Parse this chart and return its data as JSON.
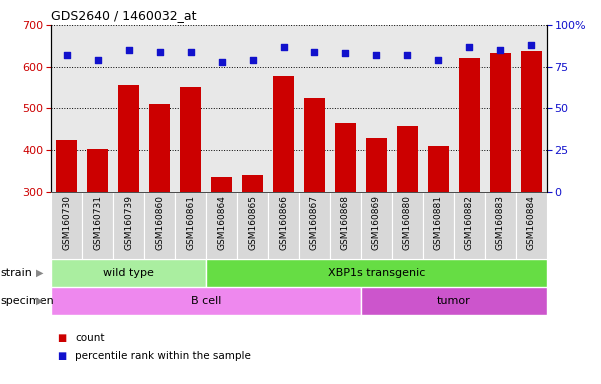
{
  "title": "GDS2640 / 1460032_at",
  "samples": [
    "GSM160730",
    "GSM160731",
    "GSM160739",
    "GSM160860",
    "GSM160861",
    "GSM160864",
    "GSM160865",
    "GSM160866",
    "GSM160867",
    "GSM160868",
    "GSM160869",
    "GSM160880",
    "GSM160881",
    "GSM160882",
    "GSM160883",
    "GSM160884"
  ],
  "counts": [
    425,
    403,
    557,
    510,
    552,
    335,
    340,
    578,
    525,
    466,
    430,
    457,
    410,
    622,
    632,
    638
  ],
  "percentiles": [
    82,
    79,
    85,
    84,
    84,
    78,
    79,
    87,
    84,
    83,
    82,
    82,
    79,
    87,
    85,
    88
  ],
  "ylim_left": [
    300,
    700
  ],
  "ylim_right": [
    0,
    100
  ],
  "yticks_left": [
    300,
    400,
    500,
    600,
    700
  ],
  "yticks_right": [
    0,
    25,
    50,
    75,
    100
  ],
  "bar_color": "#cc0000",
  "dot_color": "#1111cc",
  "bar_bottom": 300,
  "strain_groups": [
    {
      "label": "wild type",
      "start": 0,
      "end": 5,
      "color": "#aaeea0"
    },
    {
      "label": "XBP1s transgenic",
      "start": 5,
      "end": 16,
      "color": "#66dd44"
    }
  ],
  "specimen_groups": [
    {
      "label": "B cell",
      "start": 0,
      "end": 10,
      "color": "#ee88ee"
    },
    {
      "label": "tumor",
      "start": 10,
      "end": 16,
      "color": "#cc55cc"
    }
  ],
  "background_color": "#ffffff",
  "plot_bg_color": "#e8e8e8",
  "xtick_bg": "#d8d8d8"
}
